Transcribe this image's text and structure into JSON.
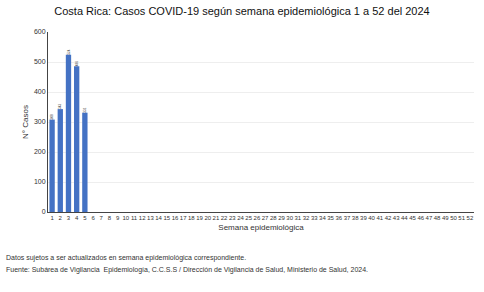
{
  "chart_data": {
    "type": "bar",
    "title": "Costa Rica: Casos COVID-19 según semana epidemiológica 1 a 52 del 2024",
    "xlabel": "Semana epidemiológica",
    "ylabel": "N° Casos",
    "categories": [
      "1",
      "2",
      "3",
      "4",
      "5",
      "6",
      "7",
      "8",
      "9",
      "10",
      "11",
      "12",
      "13",
      "14",
      "15",
      "16",
      "17",
      "18",
      "19",
      "20",
      "21",
      "22",
      "23",
      "24",
      "25",
      "26",
      "27",
      "28",
      "29",
      "30",
      "31",
      "32",
      "33",
      "34",
      "35",
      "36",
      "37",
      "38",
      "39",
      "40",
      "41",
      "42",
      "43",
      "44",
      "45",
      "46",
      "47",
      "48",
      "49",
      "50",
      "51",
      "52"
    ],
    "values": [
      308,
      343,
      524,
      486,
      331,
      0,
      0,
      0,
      0,
      0,
      0,
      0,
      0,
      0,
      0,
      0,
      0,
      0,
      0,
      0,
      0,
      0,
      0,
      0,
      0,
      0,
      0,
      0,
      0,
      0,
      0,
      0,
      0,
      0,
      0,
      0,
      0,
      0,
      0,
      0,
      0,
      0,
      0,
      0,
      0,
      0,
      0,
      0,
      0,
      0,
      0,
      0
    ],
    "value_labels": [
      "308",
      "343",
      "524",
      "486",
      "331",
      null,
      null,
      null,
      null,
      null,
      null,
      null,
      null,
      null,
      null,
      null,
      null,
      null,
      null,
      null,
      null,
      null,
      null,
      null,
      null,
      null,
      null,
      null,
      null,
      null,
      null,
      null,
      null,
      null,
      null,
      null,
      null,
      null,
      null,
      null,
      null,
      null,
      null,
      null,
      null,
      null,
      null,
      null,
      null,
      null,
      null,
      null
    ],
    "data_labels": true,
    "color": "#4472C4",
    "ylim": [
      0,
      600
    ],
    "yticks": [
      0,
      100,
      200,
      300,
      400,
      500,
      600
    ],
    "grid": true,
    "annotations": [
      "Datos sujetos a ser actualizados en semana epidemiológica correspondiente.",
      "Fuente: Subárea de Vigilancia  Epidemiología, C.C.S.S / Dirección de Vigilancia de Salud, Ministerio de Salud, 2024."
    ]
  }
}
